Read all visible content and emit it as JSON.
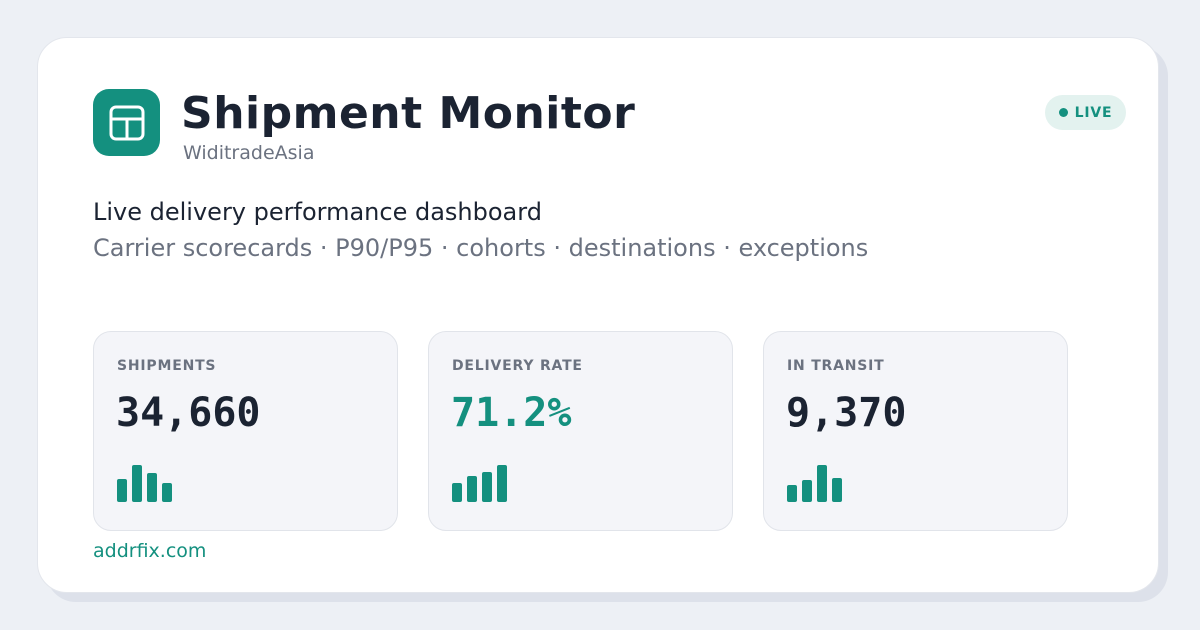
{
  "header": {
    "title": "Shipment Monitor",
    "organization": "WiditradeAsia",
    "logo_icon": "dashboard-layout-icon",
    "status_badge": "LIVE"
  },
  "description": {
    "tagline": "Live delivery performance dashboard",
    "features": "Carrier scorecards · P90/P95 · cohorts · destinations · exceptions"
  },
  "stats": [
    {
      "label": "SHIPMENTS",
      "value": "34,660",
      "accent": false,
      "trend": [
        0.62,
        1.0,
        0.78,
        0.5
      ]
    },
    {
      "label": "DELIVERY RATE",
      "value": "71.2%",
      "accent": true,
      "trend": [
        0.52,
        0.7,
        0.8,
        1.0
      ]
    },
    {
      "label": "IN TRANSIT",
      "value": "9,370",
      "accent": false,
      "trend": [
        0.45,
        0.6,
        1.0,
        0.65
      ]
    }
  ],
  "footer": {
    "link": "addrfix.com"
  },
  "colors": {
    "accent": "#14907f",
    "text_dark": "#1b2332",
    "text_muted": "#6b7280",
    "badge_bg": "#e3f2ef"
  }
}
